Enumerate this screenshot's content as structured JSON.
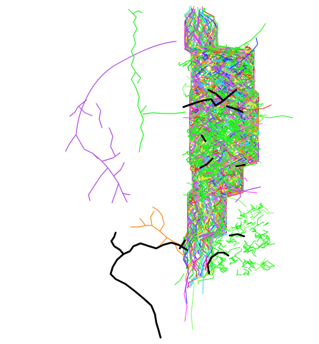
{
  "image": {
    "background": "#ffffff",
    "palette": {
      "green": "#24f21c",
      "black": "#000000",
      "purple": "#b04ae6",
      "magenta": "#ff3cff",
      "blue": "#2b3cff",
      "cyan": "#2fd8ff",
      "orange": "#ff8a1c",
      "red": "#ff2828",
      "yellow": "#ffef3c",
      "lime": "#78ff60",
      "darkgreen": "#08c418",
      "pink": "#ff6ad2"
    }
  }
}
